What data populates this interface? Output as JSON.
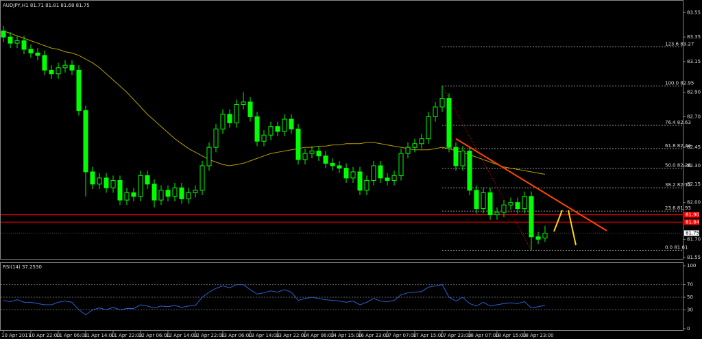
{
  "chart_data": {
    "type": "candlestick",
    "title": "AUDJPY,H1  81.71 81.81 81.68 81.75",
    "up_color": "#00ff00",
    "down_color": "#00ff00",
    "open": [
      83.4,
      83.35,
      83.3,
      83.32,
      83.25,
      83.22,
      83.2,
      83.08,
      83.05,
      83.1,
      83.12,
      83.08,
      82.75,
      82.25,
      82.15,
      82.2,
      82.12,
      82.18,
      82.02,
      82.08,
      82.05,
      82.22,
      82.15,
      82.02,
      82.1,
      82.05,
      82.12,
      82.03,
      82.08,
      82.1,
      82.3,
      82.45,
      82.6,
      82.72,
      82.65,
      82.8,
      82.82,
      82.7,
      82.5,
      82.55,
      82.62,
      82.58,
      82.68,
      82.6,
      82.35,
      82.4,
      82.42,
      82.38,
      82.32,
      82.3,
      82.28,
      82.2,
      82.25,
      82.1,
      82.18,
      82.3,
      82.2,
      82.18,
      82.22,
      82.4,
      82.45,
      82.48,
      82.52,
      82.7,
      82.78,
      82.85,
      82.45,
      82.3,
      82.42,
      82.1,
      81.95,
      82.08,
      81.9,
      81.92,
      81.98,
      82.0,
      81.95,
      82.05,
      81.72,
      81.71
    ],
    "high": [
      83.44,
      83.39,
      83.36,
      83.36,
      83.29,
      83.26,
      83.24,
      83.12,
      83.14,
      83.16,
      83.16,
      83.12,
      82.79,
      82.29,
      82.24,
      82.24,
      82.22,
      82.22,
      82.12,
      82.12,
      82.26,
      82.26,
      82.19,
      82.14,
      82.14,
      82.16,
      82.16,
      82.12,
      82.14,
      82.34,
      82.49,
      82.64,
      82.76,
      82.76,
      82.84,
      82.9,
      82.86,
      82.74,
      82.59,
      82.66,
      82.66,
      82.72,
      82.72,
      82.64,
      82.44,
      82.46,
      82.46,
      82.42,
      82.36,
      82.34,
      82.32,
      82.29,
      82.29,
      82.22,
      82.34,
      82.34,
      82.24,
      82.26,
      82.44,
      82.49,
      82.52,
      82.56,
      82.74,
      82.82,
      82.95,
      82.89,
      82.49,
      82.46,
      82.46,
      82.14,
      82.12,
      82.12,
      81.96,
      82.02,
      82.04,
      82.04,
      82.09,
      82.09,
      81.76,
      81.81
    ],
    "low": [
      83.31,
      83.26,
      83.26,
      83.21,
      83.18,
      83.16,
      83.04,
      83.01,
      83.01,
      83.06,
      83.04,
      82.71,
      82.05,
      82.11,
      82.11,
      82.08,
      82.08,
      81.98,
      81.98,
      82.01,
      82.01,
      82.11,
      81.96,
      81.98,
      82.01,
      82.01,
      81.99,
      81.99,
      82.04,
      82.06,
      82.26,
      82.41,
      82.56,
      82.61,
      82.61,
      82.76,
      82.66,
      82.46,
      82.46,
      82.51,
      82.54,
      82.54,
      82.56,
      82.31,
      82.31,
      82.36,
      82.34,
      82.28,
      82.26,
      82.24,
      82.16,
      82.16,
      82.06,
      82.06,
      82.14,
      82.16,
      82.14,
      82.14,
      82.18,
      82.36,
      82.41,
      82.44,
      82.48,
      82.66,
      82.74,
      82.41,
      82.26,
      82.26,
      82.06,
      81.91,
      81.91,
      81.86,
      81.86,
      81.88,
      81.94,
      81.91,
      81.91,
      81.61,
      81.66,
      81.68
    ],
    "close": [
      83.35,
      83.3,
      83.32,
      83.25,
      83.22,
      83.2,
      83.08,
      83.05,
      83.1,
      83.12,
      83.08,
      82.75,
      82.25,
      82.15,
      82.2,
      82.12,
      82.18,
      82.02,
      82.08,
      82.05,
      82.22,
      82.15,
      82.02,
      82.1,
      82.05,
      82.12,
      82.03,
      82.08,
      82.1,
      82.3,
      82.45,
      82.6,
      82.72,
      82.65,
      82.8,
      82.82,
      82.7,
      82.5,
      82.55,
      82.62,
      82.58,
      82.68,
      82.6,
      82.35,
      82.4,
      82.42,
      82.38,
      82.32,
      82.3,
      82.28,
      82.2,
      82.25,
      82.1,
      82.18,
      82.3,
      82.2,
      82.18,
      82.22,
      82.4,
      82.45,
      82.48,
      82.52,
      82.7,
      82.78,
      82.85,
      82.45,
      82.3,
      82.42,
      82.1,
      81.95,
      82.08,
      81.9,
      81.92,
      81.98,
      82.0,
      81.95,
      82.05,
      81.72,
      81.7,
      81.75
    ],
    "ma": {
      "color": "#b8a000",
      "values": [
        83.4,
        83.38,
        83.36,
        83.34,
        83.32,
        83.3,
        83.28,
        83.26,
        83.25,
        83.23,
        83.22,
        83.2,
        83.17,
        83.14,
        83.1,
        83.05,
        83.0,
        82.95,
        82.9,
        82.84,
        82.78,
        82.72,
        82.67,
        82.62,
        82.57,
        82.52,
        82.48,
        82.44,
        82.41,
        82.38,
        82.35,
        82.33,
        82.31,
        82.3,
        82.31,
        82.32,
        82.34,
        82.36,
        82.38,
        82.4,
        82.41,
        82.42,
        82.43,
        82.44,
        82.45,
        82.45,
        82.46,
        82.46,
        82.47,
        82.47,
        82.48,
        82.48,
        82.48,
        82.49,
        82.49,
        82.48,
        82.47,
        82.46,
        82.45,
        82.44,
        82.43,
        82.43,
        82.43,
        82.44,
        82.45,
        82.44,
        82.42,
        82.41,
        82.39,
        82.37,
        82.35,
        82.33,
        82.31,
        82.29,
        82.28,
        82.27,
        82.26,
        82.25,
        82.24,
        82.23
      ]
    },
    "ylim": [
      81.54,
      83.63
    ],
    "yticks": [
      83.55,
      83.35,
      83.15,
      {
        "value": 82.9,
        "label": "82.90"
      },
      {
        "value": 82.7,
        "label": "82.70"
      },
      82.45,
      {
        "value": 82.3,
        "label": "82.30"
      },
      82.15,
      {
        "value": 82.0,
        "label": "82.00"
      },
      {
        "value": 81.7,
        "label": "81.70"
      },
      81.55
    ],
    "xticks": [
      {
        "value": 0,
        "label": "10 Apr 2017"
      },
      {
        "value": 4,
        "label": "10 Apr 22:00"
      },
      {
        "value": 8,
        "label": "11 Apr 06:00"
      },
      {
        "value": 12,
        "label": "11 Apr 14:00"
      },
      {
        "value": 16,
        "label": "11 Apr 22:00"
      },
      {
        "value": 20,
        "label": "12 Apr 06:00"
      },
      {
        "value": 24,
        "label": "12 Apr 14:00"
      },
      {
        "value": 28,
        "label": "12 Apr 22:00"
      },
      {
        "value": 32,
        "label": "13 Apr 06:00"
      },
      {
        "value": 36,
        "label": "13 Apr 14:00"
      },
      {
        "value": 40,
        "label": "13 Apr 22:00"
      },
      {
        "value": 44,
        "label": "14 Apr 06:00"
      },
      {
        "value": 48,
        "label": "14 Apr 15:00"
      },
      {
        "value": 52,
        "label": "16 Apr 23:00"
      },
      {
        "value": 56,
        "label": "17 Apr 07:00"
      },
      {
        "value": 60,
        "label": "17 Apr 15:00"
      },
      {
        "value": 64,
        "label": "17 Apr 23:00"
      },
      {
        "value": 68,
        "label": "18 Apr 07:00"
      },
      {
        "value": 72,
        "label": "18 Apr 15:00"
      },
      {
        "value": 76,
        "label": "18 Apr 23:00"
      }
    ],
    "hlines": {
      "color": "#ff0000",
      "lines": [
        {
          "value": 81.9,
          "label": "81.90"
        },
        {
          "value": 81.84,
          "label": "81.84"
        }
      ]
    },
    "fib": {
      "color": "#9a9a9a",
      "levels": [
        {
          "value": 83.27,
          "text": "123.6 83.27"
        },
        {
          "value": 82.95,
          "text": "100.0 82.95"
        },
        {
          "value": 82.63,
          "text": "76.4 82.63"
        },
        {
          "value": 82.44,
          "text": "61.8 82.44"
        },
        {
          "value": 82.28,
          "text": "50.0 82.28"
        },
        {
          "value": 82.12,
          "text": "38.2 82.12"
        },
        {
          "value": 81.93,
          "text": "23.6 81.93"
        },
        {
          "value": 81.61,
          "text": "0.0 81.61"
        }
      ]
    },
    "trendline": {
      "color": "#ff4500",
      "x": [
        66,
        88
      ],
      "y": [
        82.52,
        81.77
      ]
    },
    "rsi": {
      "label": "RSI(14) 37.2530",
      "color": "#3060d0",
      "ylim": [
        0,
        100
      ],
      "yticks": [
        100,
        70,
        50,
        30,
        0
      ],
      "values": [
        45,
        43,
        46,
        42,
        42,
        40,
        38,
        38,
        42,
        44,
        42,
        30,
        22,
        30,
        33,
        30,
        34,
        30,
        32,
        32,
        38,
        36,
        33,
        36,
        35,
        37,
        34,
        36,
        37,
        50,
        58,
        64,
        68,
        65,
        70,
        70,
        62,
        55,
        57,
        60,
        58,
        62,
        58,
        45,
        48,
        50,
        48,
        46,
        45,
        44,
        42,
        44,
        38,
        42,
        48,
        44,
        43,
        45,
        54,
        57,
        58,
        59,
        66,
        68,
        70,
        50,
        44,
        50,
        40,
        36,
        42,
        36,
        38,
        40,
        41,
        40,
        43,
        33,
        35,
        37.253
      ]
    }
  }
}
